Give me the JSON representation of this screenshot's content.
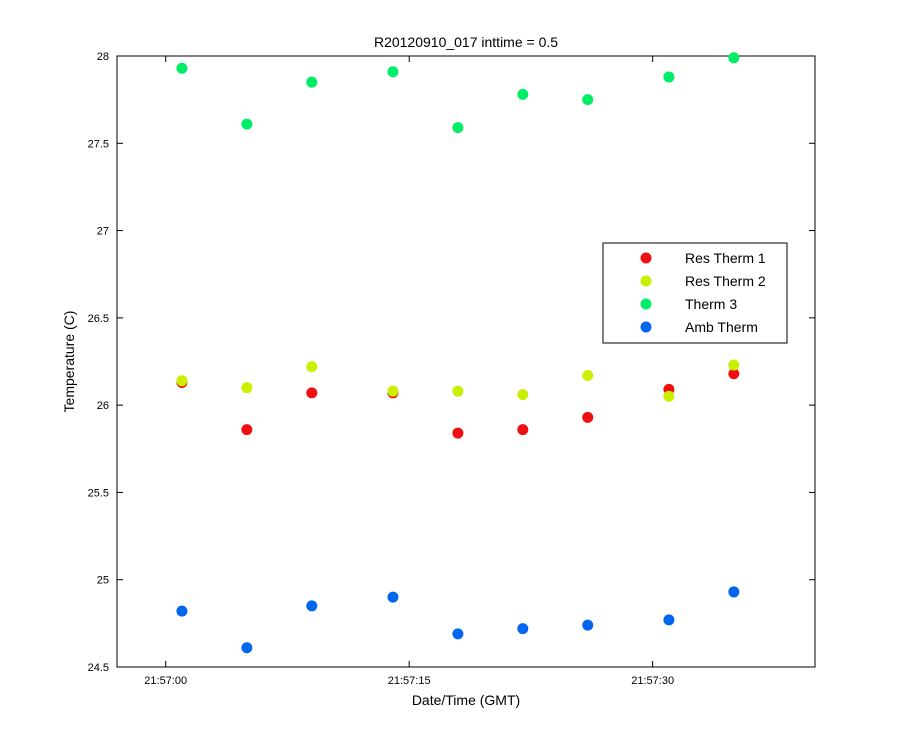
{
  "chart_data": {
    "type": "scatter",
    "title": "R20120910_017 inttime = 0.5",
    "xlabel": "Date/Time (GMT)",
    "ylabel": "Temperature (C)",
    "ylim": [
      24.5,
      28
    ],
    "yticks": [
      24.5,
      25,
      25.5,
      26,
      26.5,
      27,
      27.5,
      28
    ],
    "ytick_labels": [
      "24.5",
      "25",
      "25.5",
      "26",
      "26.5",
      "27",
      "27.5",
      "28"
    ],
    "xlim": [
      "21:56:57",
      "21:57:40"
    ],
    "xticks": [
      "21:57:00",
      "21:57:15",
      "21:57:30"
    ],
    "xtick_labels": [
      "21:57:00",
      "21:57:15",
      "21:57:30"
    ],
    "grid": false,
    "legend_position": "right",
    "x": [
      "21:57:01",
      "21:57:05",
      "21:57:09",
      "21:57:14",
      "21:57:18",
      "21:57:22",
      "21:57:26",
      "21:57:31",
      "21:57:35"
    ],
    "series": [
      {
        "name": "Res Therm 1",
        "color": "#ee1111",
        "values": [
          26.13,
          25.86,
          26.07,
          26.07,
          25.84,
          25.86,
          25.93,
          26.09,
          26.18
        ]
      },
      {
        "name": "Res Therm 2",
        "color": "#ccee00",
        "values": [
          26.14,
          26.1,
          26.22,
          26.08,
          26.08,
          26.06,
          26.17,
          26.05,
          26.23
        ]
      },
      {
        "name": "Therm 3",
        "color": "#00ee66",
        "values": [
          27.93,
          27.61,
          27.85,
          27.91,
          27.59,
          27.78,
          27.75,
          27.88,
          27.99
        ]
      },
      {
        "name": "Amb Therm",
        "color": "#0066ee",
        "values": [
          24.82,
          24.61,
          24.85,
          24.9,
          24.69,
          24.72,
          24.74,
          24.77,
          24.93
        ]
      }
    ]
  }
}
